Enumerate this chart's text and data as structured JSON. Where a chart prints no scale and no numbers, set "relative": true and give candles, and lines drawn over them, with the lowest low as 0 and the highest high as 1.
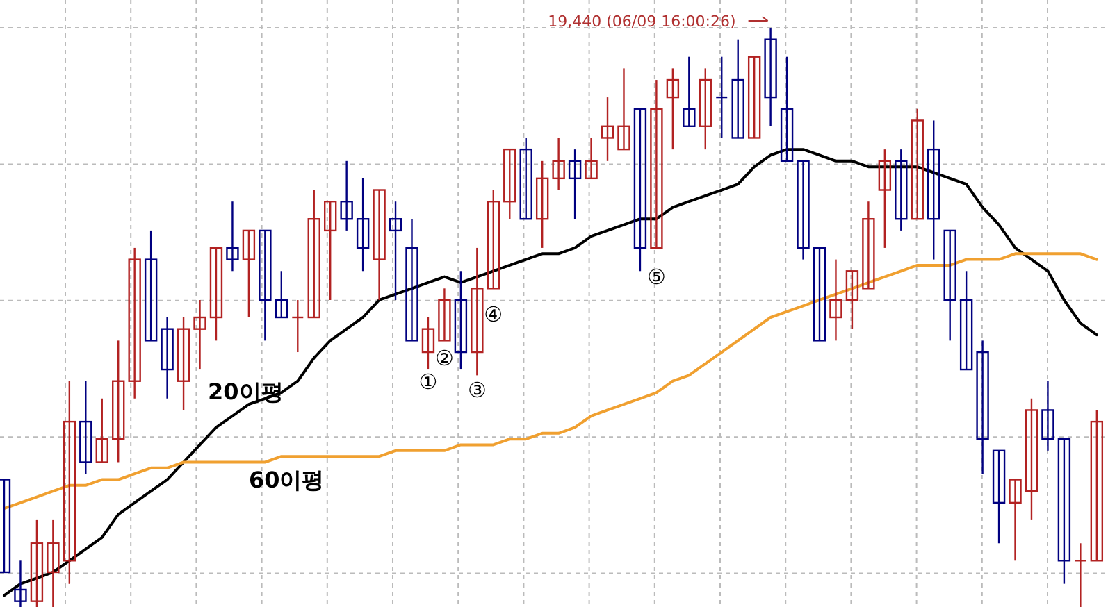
{
  "chart_data": {
    "type": "candlestick",
    "relative": true,
    "grid": true,
    "categories": [
      null,
      null,
      null,
      null,
      null,
      null,
      null,
      null,
      null,
      null,
      null,
      null,
      null,
      null,
      null,
      null,
      null,
      null,
      null,
      null,
      null,
      null,
      null,
      null,
      null,
      null,
      null,
      null,
      null,
      null,
      null,
      null,
      null,
      null,
      null,
      null,
      null,
      null,
      null,
      null,
      null,
      null,
      null,
      null,
      null,
      null,
      null,
      null,
      null,
      null,
      null,
      null,
      null,
      null,
      null,
      null,
      null,
      null,
      null,
      null,
      null,
      null,
      null,
      null,
      null,
      null,
      null,
      null
    ],
    "ohlc": [
      [
        0.22,
        0.22,
        0.06,
        0.06
      ],
      [
        0.03,
        0.08,
        0,
        0.01
      ],
      [
        0.01,
        0.15,
        0,
        0.11
      ],
      [
        0.06,
        0.15,
        0,
        0.11
      ],
      [
        0.08,
        0.39,
        0.04,
        0.32
      ],
      [
        0.32,
        0.39,
        0.23,
        0.25
      ],
      [
        0.25,
        0.36,
        0.25,
        0.29
      ],
      [
        0.29,
        0.46,
        0.25,
        0.39
      ],
      [
        0.39,
        0.62,
        0.36,
        0.6
      ],
      [
        0.6,
        0.65,
        0.46,
        0.46
      ],
      [
        0.48,
        0.5,
        0.36,
        0.41
      ],
      [
        0.39,
        0.5,
        0.34,
        0.48
      ],
      [
        0.48,
        0.53,
        0.41,
        0.5
      ],
      [
        0.5,
        0.62,
        0.46,
        0.62
      ],
      [
        0.62,
        0.7,
        0.58,
        0.6
      ],
      [
        0.6,
        0.65,
        0.5,
        0.65
      ],
      [
        0.65,
        0.65,
        0.46,
        0.53
      ],
      [
        0.53,
        0.58,
        0.5,
        0.5
      ],
      [
        0.5,
        0.53,
        0.44,
        0.5
      ],
      [
        0.5,
        0.72,
        0.5,
        0.67
      ],
      [
        0.65,
        0.7,
        0.53,
        0.7
      ],
      [
        0.7,
        0.77,
        0.65,
        0.67
      ],
      [
        0.67,
        0.74,
        0.58,
        0.62
      ],
      [
        0.6,
        0.72,
        0.53,
        0.72
      ],
      [
        0.67,
        0.7,
        0.53,
        0.65
      ],
      [
        0.62,
        0.67,
        0.46,
        0.46
      ],
      [
        0.44,
        0.5,
        0.41,
        0.48
      ],
      [
        0.46,
        0.55,
        0.46,
        0.53
      ],
      [
        0.53,
        0.58,
        0.41,
        0.44
      ],
      [
        0.44,
        0.62,
        0.4,
        0.55
      ],
      [
        0.55,
        0.72,
        0.55,
        0.7
      ],
      [
        0.7,
        0.79,
        0.67,
        0.79
      ],
      [
        0.79,
        0.81,
        0.67,
        0.67
      ],
      [
        0.67,
        0.77,
        0.62,
        0.74
      ],
      [
        0.74,
        0.81,
        0.72,
        0.77
      ],
      [
        0.77,
        0.79,
        0.67,
        0.74
      ],
      [
        0.74,
        0.81,
        0.74,
        0.77
      ],
      [
        0.81,
        0.88,
        0.77,
        0.83
      ],
      [
        0.79,
        0.93,
        0.79,
        0.83
      ],
      [
        0.86,
        0.86,
        0.58,
        0.62
      ],
      [
        0.62,
        0.91,
        0.62,
        0.86
      ],
      [
        0.88,
        0.93,
        0.79,
        0.91
      ],
      [
        0.86,
        0.95,
        0.83,
        0.83
      ],
      [
        0.83,
        0.93,
        0.79,
        0.91
      ],
      [
        0.88,
        0.95,
        0.81,
        0.88
      ],
      [
        0.91,
        0.98,
        0.81,
        0.81
      ],
      [
        0.81,
        0.95,
        0.81,
        0.95
      ],
      [
        0.98,
        1,
        0.83,
        0.88
      ],
      [
        0.86,
        0.95,
        0.77,
        0.77
      ],
      [
        0.77,
        0.77,
        0.6,
        0.62
      ],
      [
        0.62,
        0.62,
        0.46,
        0.46
      ],
      [
        0.5,
        0.6,
        0.46,
        0.53
      ],
      [
        0.53,
        0.58,
        0.48,
        0.58
      ],
      [
        0.55,
        0.7,
        0.55,
        0.67
      ],
      [
        0.72,
        0.79,
        0.62,
        0.77
      ],
      [
        0.77,
        0.79,
        0.65,
        0.67
      ],
      [
        0.67,
        0.86,
        0.67,
        0.84
      ],
      [
        0.79,
        0.84,
        0.6,
        0.67
      ],
      [
        0.65,
        0.65,
        0.46,
        0.53
      ],
      [
        0.53,
        0.58,
        0.41,
        0.41
      ],
      [
        0.44,
        0.46,
        0.23,
        0.29
      ],
      [
        0.27,
        0.27,
        0.11,
        0.18
      ],
      [
        0.18,
        0.22,
        0.08,
        0.22
      ],
      [
        0.2,
        0.36,
        0.15,
        0.34
      ],
      [
        0.34,
        0.39,
        0.27,
        0.29
      ],
      [
        0.29,
        0.29,
        0.04,
        0.08
      ],
      [
        0.08,
        0.11,
        0,
        0.08
      ],
      [
        0.08,
        0.34,
        0.08,
        0.32
      ]
    ],
    "colors": [
      "#000080",
      "#000080",
      "#b22222",
      "#b22222",
      "#b22222",
      "#000080",
      "#b22222",
      "#b22222",
      "#b22222",
      "#000080",
      "#000080",
      "#b22222",
      "#b22222",
      "#b22222",
      "#000080",
      "#b22222",
      "#000080",
      "#000080",
      "#b22222",
      "#b22222",
      "#b22222",
      "#000080",
      "#000080",
      "#b22222",
      "#000080",
      "#000080",
      "#b22222",
      "#b22222",
      "#000080",
      "#b22222",
      "#b22222",
      "#b22222",
      "#000080",
      "#b22222",
      "#b22222",
      "#000080",
      "#b22222",
      "#b22222",
      "#b22222",
      "#000080",
      "#b22222",
      "#b22222",
      "#000080",
      "#b22222",
      "#000080",
      "#000080",
      "#b22222",
      "#000080",
      "#000080",
      "#000080",
      "#000080",
      "#b22222",
      "#b22222",
      "#b22222",
      "#b22222",
      "#000080",
      "#b22222",
      "#000080",
      "#000080",
      "#000080",
      "#000080",
      "#000080",
      "#b22222",
      "#b22222",
      "#000080",
      "#000080",
      "#b22222",
      "#b22222"
    ],
    "series": [
      {
        "name": "20이평",
        "type": "line",
        "color": "#000000",
        "values": [
          0.02,
          0.04,
          0.05,
          0.06,
          0.08,
          0.1,
          0.12,
          0.16,
          0.18,
          0.2,
          0.22,
          0.25,
          0.28,
          0.31,
          0.33,
          0.35,
          0.36,
          0.37,
          0.39,
          0.43,
          0.46,
          0.48,
          0.5,
          0.53,
          0.54,
          0.55,
          0.56,
          0.57,
          0.56,
          0.57,
          0.58,
          0.59,
          0.6,
          0.61,
          0.61,
          0.62,
          0.64,
          0.65,
          0.66,
          0.67,
          0.67,
          0.69,
          0.7,
          0.71,
          0.72,
          0.73,
          0.76,
          0.78,
          0.79,
          0.79,
          0.78,
          0.77,
          0.77,
          0.76,
          0.76,
          0.76,
          0.76,
          0.75,
          0.74,
          0.73,
          0.69,
          0.66,
          0.62,
          0.6,
          0.58,
          0.53,
          0.49,
          0.47
        ]
      },
      {
        "name": "60이평",
        "type": "line",
        "color": "#f0a030",
        "values": [
          0.17,
          0.18,
          0.19,
          0.2,
          0.21,
          0.21,
          0.22,
          0.22,
          0.23,
          0.24,
          0.24,
          0.25,
          0.25,
          0.25,
          0.25,
          0.25,
          0.25,
          0.26,
          0.26,
          0.26,
          0.26,
          0.26,
          0.26,
          0.26,
          0.27,
          0.27,
          0.27,
          0.27,
          0.28,
          0.28,
          0.28,
          0.29,
          0.29,
          0.3,
          0.3,
          0.31,
          0.33,
          0.34,
          0.35,
          0.36,
          0.37,
          0.39,
          0.4,
          0.42,
          0.44,
          0.46,
          0.48,
          0.5,
          0.51,
          0.52,
          0.53,
          0.54,
          0.55,
          0.56,
          0.57,
          0.58,
          0.59,
          0.59,
          0.59,
          0.6,
          0.6,
          0.6,
          0.61,
          0.61,
          0.61,
          0.61,
          0.61,
          0.6
        ]
      }
    ],
    "annotations": [
      "19,440 (06/09 16:00:26)",
      "①",
      "②",
      "③",
      "④",
      "⑤"
    ]
  }
}
